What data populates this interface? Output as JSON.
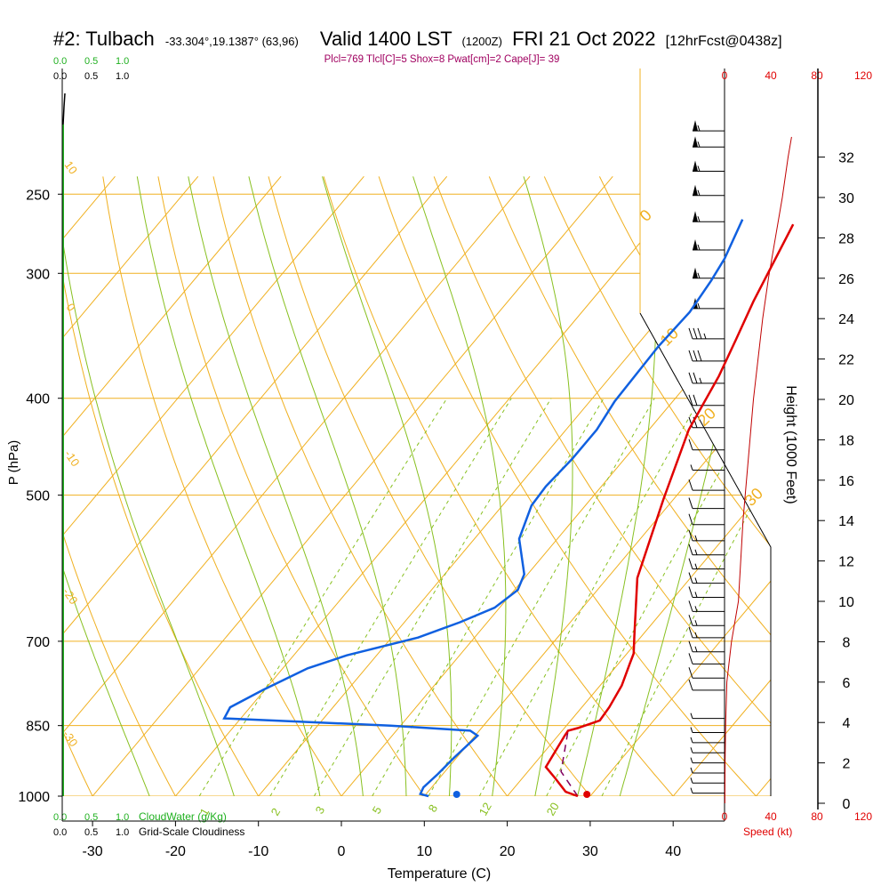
{
  "header": {
    "station": "#2: Tulbach",
    "coords": "-33.304°,19.1387° (63,96)",
    "valid": "Valid 1400 LST",
    "zulu": "(1200Z)",
    "date": "FRI 21 Oct 2022",
    "forecast": "[12hrFcst@0438z]",
    "indices": "Plcl=769 Tlcl[C]=5 Shox=8 Pwat[cm]=2 Cape[J]= 39"
  },
  "colors": {
    "temperature": "#e00000",
    "dewpoint": "#1060e0",
    "isotherm": "#f0b020",
    "dry_adiabat": "#f0b020",
    "moist_adiabat": "#88c020",
    "mixing_ratio": "#88c020",
    "parcel": "#800060",
    "wind_speed": "#c00000",
    "cloud": "#20b020",
    "indices_text": "#a00060",
    "red_text": "#e00000"
  },
  "labels": {
    "ylabel": "P (hPa)",
    "xlabel": "Temperature (C)",
    "height_label": "Height (1000 Feet)",
    "speed_label": "Speed (kt)",
    "cloud_water_label": "CloudWater (g/Kg)",
    "cloudiness_label": "Grid-Scale Cloudiness"
  },
  "chart_data": {
    "type": "line",
    "xlabel": "Temperature (C)",
    "ylabel": "P (hPa)",
    "xlim": [
      -33,
      46
    ],
    "ylim": [
      1000,
      250
    ],
    "x_ticks": [
      -30,
      -20,
      -10,
      0,
      10,
      20,
      30,
      40
    ],
    "p_ticks": [
      250,
      300,
      400,
      500,
      700,
      850,
      1000
    ],
    "height_ticks": [
      0,
      2,
      4,
      6,
      8,
      10,
      12,
      14,
      16,
      18,
      20,
      22,
      24,
      26,
      28,
      30,
      32
    ],
    "speed_ticks": [
      0,
      40,
      80,
      120
    ],
    "cloud_ticks": [
      "0.0",
      "0.5",
      "1.0"
    ],
    "mixing_ratio_labels": [
      "1",
      "2",
      "3",
      "5",
      "8",
      "12",
      "20"
    ],
    "dry_adiabat_labels": [
      "10",
      "0",
      "-10",
      "-20",
      "-30"
    ],
    "isotherm_labels_right": [
      "0",
      "10",
      "20",
      "30"
    ],
    "series": [
      {
        "name": "temperature",
        "points": [
          [
            28.5,
            1000
          ],
          [
            26.6,
            990
          ],
          [
            24.0,
            960
          ],
          [
            21.7,
            935
          ],
          [
            20.8,
            870
          ],
          [
            20.7,
            860
          ],
          [
            21.6,
            855
          ],
          [
            23.5,
            840
          ],
          [
            23.3,
            815
          ],
          [
            22.6,
            775
          ],
          [
            21.4,
            738
          ],
          [
            20.8,
            720
          ],
          [
            19.2,
            693
          ],
          [
            13.6,
            605
          ],
          [
            8.8,
            505
          ],
          [
            4.8,
            430
          ],
          [
            3.0,
            380
          ],
          [
            1.4,
            350
          ],
          [
            -0.4,
            320
          ],
          [
            -3.4,
            268
          ]
        ]
      },
      {
        "name": "dewpoint",
        "points": [
          [
            10.5,
            1000
          ],
          [
            9.3,
            995
          ],
          [
            9.0,
            980
          ],
          [
            9.4,
            950
          ],
          [
            9.7,
            915
          ],
          [
            10.3,
            870
          ],
          [
            8.9,
            860
          ],
          [
            -1.2,
            850
          ],
          [
            -22.0,
            836
          ],
          [
            -22.4,
            815
          ],
          [
            -20.2,
            783
          ],
          [
            -17.0,
            745
          ],
          [
            -13.6,
            723
          ],
          [
            -6.8,
            694
          ],
          [
            -3.3,
            670
          ],
          [
            -0.6,
            648
          ],
          [
            0.4,
            622
          ],
          [
            -0.4,
            600
          ],
          [
            -4.6,
            553
          ],
          [
            -6.5,
            512
          ],
          [
            -6.7,
            490
          ],
          [
            -6.3,
            460
          ],
          [
            -6.3,
            430
          ],
          [
            -7.0,
            403
          ],
          [
            -7.3,
            355
          ],
          [
            -7.0,
            328
          ],
          [
            -7.6,
            305
          ],
          [
            -8.2,
            290
          ],
          [
            -10.0,
            265
          ]
        ]
      },
      {
        "name": "parcel",
        "points": [
          [
            28.5,
            1000
          ],
          [
            24.0,
            945
          ],
          [
            20.7,
            860
          ]
        ]
      }
    ],
    "surface_temperature": 29.6,
    "surface_dewpoint": 13.9,
    "wind_speed_profile": [
      [
        0,
        0.3
      ],
      [
        2,
        0.5
      ],
      [
        4,
        1
      ],
      [
        6,
        2
      ],
      [
        8,
        6
      ],
      [
        10,
        12
      ],
      [
        12,
        14
      ],
      [
        14,
        16
      ],
      [
        16,
        19
      ],
      [
        18,
        22
      ],
      [
        20,
        25
      ],
      [
        22,
        29
      ],
      [
        24,
        33
      ],
      [
        26,
        38
      ],
      [
        28,
        44
      ],
      [
        30,
        50
      ],
      [
        32,
        55
      ],
      [
        33,
        58
      ]
    ],
    "wind_barbs": [
      {
        "h": 0.5,
        "knots": 5
      },
      {
        "h": 1.0,
        "knots": 5
      },
      {
        "h": 1.5,
        "knots": 5
      },
      {
        "h": 2.0,
        "knots": 5
      },
      {
        "h": 2.5,
        "knots": 5
      },
      {
        "h": 3.0,
        "knots": 5
      },
      {
        "h": 3.5,
        "knots": 5
      },
      {
        "h": 4.2,
        "knots": 5
      },
      {
        "h": 5.6,
        "knots": 10
      },
      {
        "h": 6.2,
        "knots": 10
      },
      {
        "h": 6.9,
        "knots": 10
      },
      {
        "h": 7.5,
        "knots": 15
      },
      {
        "h": 8.2,
        "knots": 15
      },
      {
        "h": 8.8,
        "knots": 15
      },
      {
        "h": 9.5,
        "knots": 15
      },
      {
        "h": 10.2,
        "knots": 15
      },
      {
        "h": 10.9,
        "knots": 15
      },
      {
        "h": 11.6,
        "knots": 15
      },
      {
        "h": 12.3,
        "knots": 15
      },
      {
        "h": 13.0,
        "knots": 15
      },
      {
        "h": 13.8,
        "knots": 10
      },
      {
        "h": 14.6,
        "knots": 10
      },
      {
        "h": 15.5,
        "knots": 10
      },
      {
        "h": 16.5,
        "knots": 5
      },
      {
        "h": 17.5,
        "knots": 10
      },
      {
        "h": 18.6,
        "knots": 20
      },
      {
        "h": 19.7,
        "knots": 20
      },
      {
        "h": 20.8,
        "knots": 25
      },
      {
        "h": 21.9,
        "knots": 30
      },
      {
        "h": 23.0,
        "knots": 35
      },
      {
        "h": 24.5,
        "knots": 55
      },
      {
        "h": 26.0,
        "knots": 55
      },
      {
        "h": 27.4,
        "knots": 55
      },
      {
        "h": 28.8,
        "knots": 55
      },
      {
        "h": 30.1,
        "knots": 55
      },
      {
        "h": 31.3,
        "knots": 55
      },
      {
        "h": 32.5,
        "knots": 55
      },
      {
        "h": 33.3,
        "knots": 55
      }
    ]
  }
}
